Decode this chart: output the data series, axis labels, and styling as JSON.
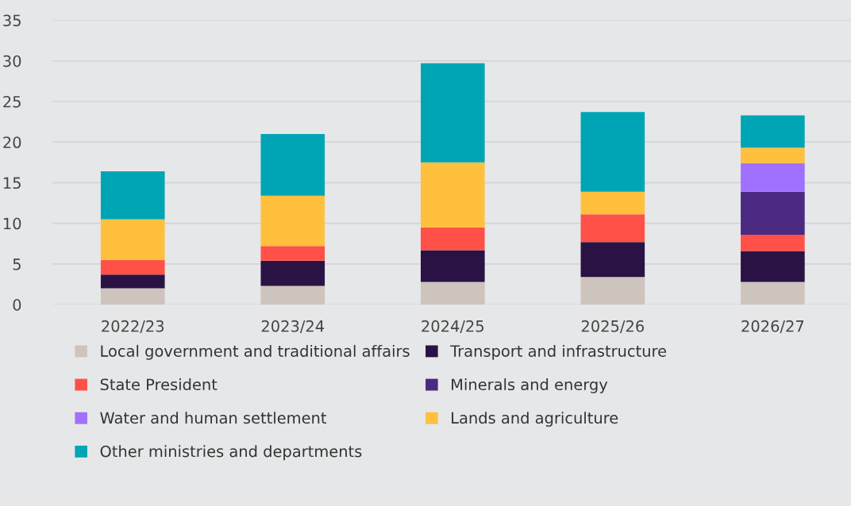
{
  "chart_data": {
    "type": "bar",
    "stacked": true,
    "categories": [
      "2022/23",
      "2023/24",
      "2024/25",
      "2025/26",
      "2026/27"
    ],
    "series": [
      {
        "name": "Local government and traditional affairs",
        "color": "#cdc4bd",
        "values": [
          2.0,
          2.3,
          2.8,
          3.4,
          2.8
        ]
      },
      {
        "name": "Transport and infrastructure",
        "color": "#2a1245",
        "values": [
          1.7,
          3.1,
          3.9,
          4.3,
          3.8
        ]
      },
      {
        "name": "State President",
        "color": "#ff5148",
        "values": [
          1.8,
          1.8,
          2.8,
          3.4,
          2.0
        ]
      },
      {
        "name": "Minerals and energy",
        "color": "#4b2a82",
        "values": [
          null,
          null,
          null,
          null,
          5.3
        ]
      },
      {
        "name": "Water and human settlement",
        "color": "#a070ff",
        "values": [
          null,
          null,
          null,
          null,
          3.5
        ]
      },
      {
        "name": "Lands and agriculture",
        "color": "#ffc03d",
        "values": [
          5.0,
          6.2,
          8.0,
          2.8,
          1.9
        ]
      },
      {
        "name": "Other ministries and departments",
        "color": "#00a5b5",
        "values": [
          5.9,
          7.6,
          12.2,
          9.8,
          4.0
        ]
      }
    ],
    "ylim": [
      0,
      35
    ],
    "yticks": [
      0,
      5,
      10,
      15,
      20,
      25,
      30,
      35
    ],
    "grid": "y",
    "legend": "bottom"
  }
}
